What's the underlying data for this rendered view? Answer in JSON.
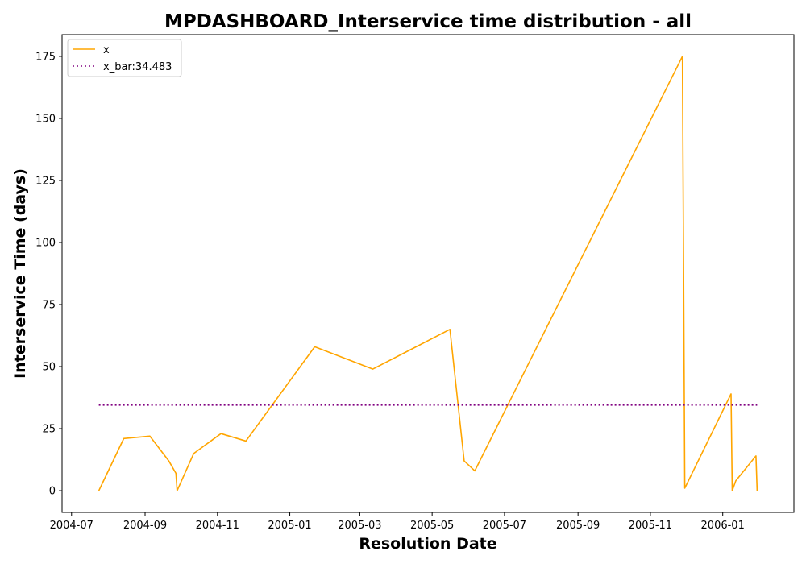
{
  "chart_data": {
    "type": "line",
    "title": "MPDASHBOARD_Interservice time distribution - all",
    "xlabel": "Resolution Date",
    "ylabel": "Interservice Time (days)",
    "x_tick_labels": [
      "2004-07",
      "2004-09",
      "2004-11",
      "2005-01",
      "2005-03",
      "2005-05",
      "2005-07",
      "2005-09",
      "2005-11",
      "2006-01"
    ],
    "x_tick_dates": [
      "2004-07-01",
      "2004-09-01",
      "2004-11-01",
      "2005-01-01",
      "2005-03-01",
      "2005-05-01",
      "2005-07-01",
      "2005-09-01",
      "2005-11-01",
      "2006-01-01"
    ],
    "y_ticks": [
      0,
      25,
      50,
      75,
      100,
      125,
      150,
      175
    ],
    "xlim": [
      "2004-06-23",
      "2006-03-02"
    ],
    "ylim": [
      -8.75,
      183.75
    ],
    "grid": false,
    "legend_position": "top-left",
    "series": [
      {
        "name": "x",
        "color": "#ffa500",
        "style": "solid",
        "x": [
          "2004-07-24",
          "2004-08-14",
          "2004-09-05",
          "2004-09-21",
          "2004-09-27",
          "2004-09-28",
          "2004-10-12",
          "2004-11-04",
          "2004-11-25",
          "2005-01-22",
          "2005-03-12",
          "2005-05-16",
          "2005-05-28",
          "2005-06-06",
          "2005-11-28",
          "2005-11-30",
          "2006-01-08",
          "2006-01-09",
          "2006-01-12",
          "2006-01-29",
          "2006-01-30"
        ],
        "values": [
          0,
          21,
          22,
          12,
          7,
          0,
          15,
          23,
          20,
          58,
          49,
          65,
          12,
          8,
          175,
          1,
          39,
          0,
          4,
          14,
          0
        ]
      },
      {
        "name": "x_bar:34.483",
        "color": "#800080",
        "style": "dotted",
        "x": [
          "2004-07-24",
          "2006-01-30"
        ],
        "values": [
          34.483,
          34.483
        ]
      }
    ]
  }
}
